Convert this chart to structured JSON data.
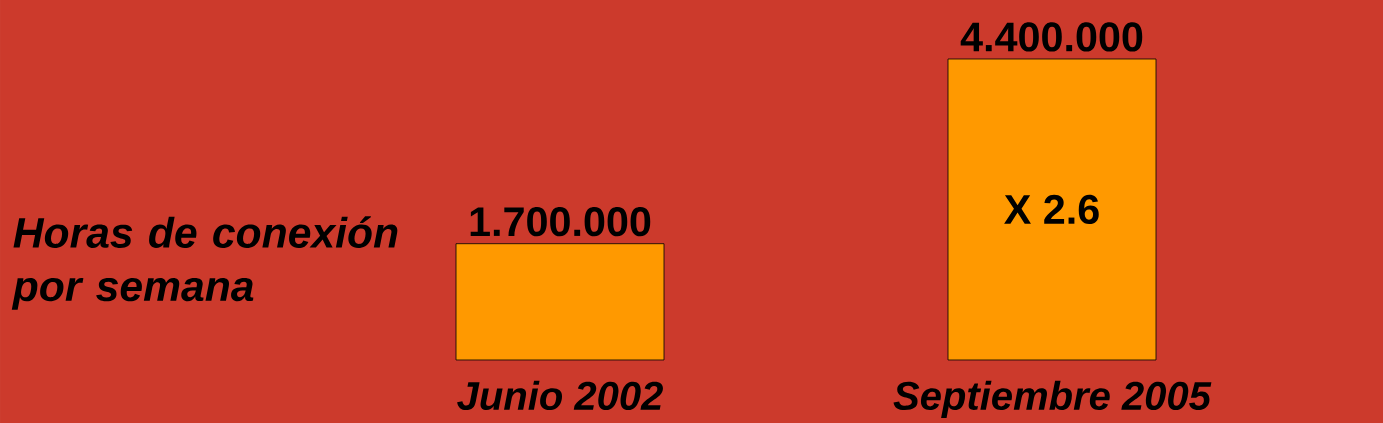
{
  "chart_data": {
    "type": "bar",
    "ylabel": "Horas de conexión por semana",
    "categories": [
      "Junio 2002",
      "Septiembre 2005"
    ],
    "values": [
      1700000,
      4400000
    ],
    "value_labels": [
      "1.700.000",
      "4.400.000"
    ],
    "color": "#ff9900",
    "annotations": [
      "X 2.6"
    ]
  }
}
